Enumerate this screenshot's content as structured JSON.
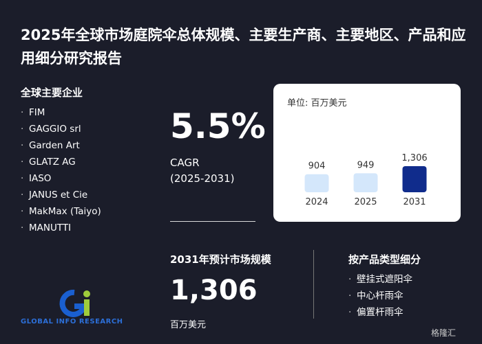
{
  "header": {
    "title": "2025年全球市场庭院伞总体规模、主要生产商、主要地区、产品和应用细分研究报告"
  },
  "companies": {
    "heading": "全球主要企业",
    "items": [
      "FIM",
      "GAGGIO srl",
      "Garden Art",
      "GLATZ AG",
      "IASO",
      "JANUS et Cie",
      "MakMax (Taiyo)",
      "MANUTTI"
    ]
  },
  "cagr": {
    "value": "5.5%",
    "label": "CAGR",
    "period": "(2025-2031)"
  },
  "chart_data": {
    "type": "bar",
    "unit": "单位: 百万美元",
    "categories": [
      "2024",
      "2025",
      "2031"
    ],
    "values": [
      904,
      949,
      1306
    ],
    "value_labels": [
      "904",
      "949",
      "1,306"
    ],
    "colors": [
      "#d4e7fb",
      "#d4e7fb",
      "#102c8c"
    ]
  },
  "market_size": {
    "heading": "2031年预计市场规模",
    "value": "1,306",
    "unit": "百万美元"
  },
  "segments": {
    "heading": "按产品类型细分",
    "items": [
      "壁挂式遮阳伞",
      "中心杆雨伞",
      "偏置杆雨伞"
    ]
  },
  "logo": {
    "text": "GLOBAL INFO RESEARCH"
  },
  "watermark": {
    "text": "格隆汇"
  }
}
